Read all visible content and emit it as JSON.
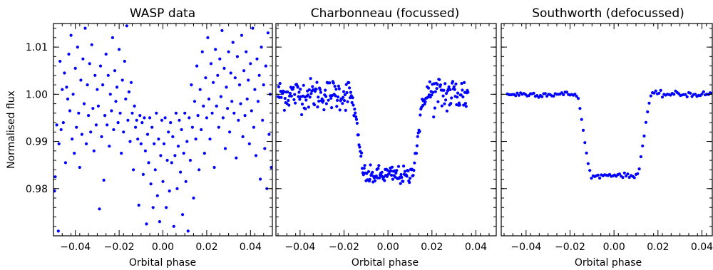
{
  "chart_data": [
    {
      "type": "scatter",
      "title": "WASP data",
      "xlabel": "Orbital phase",
      "ylabel": "Normalised flux",
      "xlim": [
        -0.05,
        0.05
      ],
      "ylim": [
        0.97,
        1.015
      ],
      "x_ticks": [
        -0.04,
        -0.02,
        0.0,
        0.02,
        0.04
      ],
      "x_tick_labels": [
        "−0.04",
        "−0.02",
        "0.00",
        "0.02",
        "0.04"
      ],
      "y_ticks": [
        0.98,
        0.99,
        1.0,
        1.01
      ],
      "y_tick_labels": [
        "0.98",
        "0.99",
        "1.00",
        "1.01"
      ],
      "grid": false,
      "marker_color": "#0000ff",
      "series": [
        {
          "values": [
            [
              -0.0495,
              0.9795
            ],
            [
              -0.0492,
              0.9825
            ],
            [
              -0.0485,
              0.9935
            ],
            [
              -0.0478,
              0.971
            ],
            [
              -0.0475,
              0.9895
            ],
            [
              -0.047,
              1.007
            ],
            [
              -0.0465,
              0.9925
            ],
            [
              -0.046,
              1.001
            ],
            [
              -0.0455,
              0.994
            ],
            [
              -0.045,
              1.0045
            ],
            [
              -0.0445,
              0.9855
            ],
            [
              -0.044,
              1.0015
            ],
            [
              -0.0435,
              0.999
            ],
            [
              -0.043,
              1.0085
            ],
            [
              -0.0425,
              0.9965
            ],
            [
              -0.042,
              1.0125
            ],
            [
              -0.0415,
              0.9905
            ],
            [
              -0.041,
              1.0
            ],
            [
              -0.0405,
              0.9875
            ],
            [
              -0.04,
              1.0055
            ],
            [
              -0.0395,
              0.993
            ],
            [
              -0.039,
              1.01
            ],
            [
              -0.0385,
              0.996
            ],
            [
              -0.038,
              0.9845
            ],
            [
              -0.0375,
              1.003
            ],
            [
              -0.037,
              0.9915
            ],
            [
              -0.0365,
              1.0075
            ],
            [
              -0.036,
              0.998
            ],
            [
              -0.0355,
              1.014
            ],
            [
              -0.035,
              0.9895
            ],
            [
              -0.0345,
              1.002
            ],
            [
              -0.034,
              0.9955
            ],
            [
              -0.0335,
              1.0065
            ],
            [
              -0.033,
              0.992
            ],
            [
              -0.0325,
              1.0105
            ],
            [
              -0.032,
              0.997
            ],
            [
              -0.0315,
              0.988
            ],
            [
              -0.031,
              1.004
            ],
            [
              -0.0305,
              0.9935
            ],
            [
              -0.03,
              1.001
            ],
            [
              -0.0295,
              0.9975
            ],
            [
              -0.029,
              0.9757
            ],
            [
              -0.0285,
              1.006
            ],
            [
              -0.028,
              0.991
            ],
            [
              -0.0275,
              1.002
            ],
            [
              -0.027,
              0.9818
            ],
            [
              -0.0265,
              0.9955
            ],
            [
              -0.026,
              1.0085
            ],
            [
              -0.0255,
              0.9935
            ],
            [
              -0.025,
              1.004
            ],
            [
              -0.0245,
              0.989
            ],
            [
              -0.024,
              1.0
            ],
            [
              -0.0235,
              0.9965
            ],
            [
              -0.023,
              1.012
            ],
            [
              -0.0225,
              0.9925
            ],
            [
              -0.022,
              1.005
            ],
            [
              -0.0215,
              0.9985
            ],
            [
              -0.021,
              1.0015
            ],
            [
              -0.0205,
              0.994
            ],
            [
              -0.02,
              1.0095
            ],
            [
              -0.0195,
              0.996
            ],
            [
              -0.019,
              0.9875
            ],
            [
              -0.0185,
              1.003
            ],
            [
              -0.018,
              0.992
            ],
            [
              -0.0175,
              1.007
            ],
            [
              -0.017,
              0.999
            ],
            [
              -0.0165,
              1.0145
            ],
            [
              -0.016,
              0.9945
            ],
            [
              -0.0155,
              1.0005
            ],
            [
              -0.015,
              0.99
            ],
            [
              -0.0145,
              1.0025
            ],
            [
              -0.014,
              0.996
            ],
            [
              -0.0135,
              0.984
            ],
            [
              -0.013,
              0.9975
            ],
            [
              -0.0125,
              0.993
            ],
            [
              -0.012,
              0.9945
            ],
            [
              -0.0115,
              0.9905
            ],
            [
              -0.011,
              0.9765
            ],
            [
              -0.0105,
              0.9955
            ],
            [
              -0.01,
              0.9895
            ],
            [
              -0.0095,
              0.994
            ],
            [
              -0.009,
              0.983
            ],
            [
              -0.0085,
              0.995
            ],
            [
              -0.008,
              0.988
            ],
            [
              -0.0075,
              0.9725
            ],
            [
              -0.007,
              0.9915
            ],
            [
              -0.0065,
              0.9855
            ],
            [
              -0.006,
              0.995
            ],
            [
              -0.0055,
              0.981
            ],
            [
              -0.005,
              0.993
            ],
            [
              -0.0045,
              0.976
            ],
            [
              -0.004,
              0.9895
            ],
            [
              -0.0035,
              0.984
            ],
            [
              -0.003,
              0.996
            ],
            [
              -0.0025,
              0.9785
            ],
            [
              -0.002,
              0.9905
            ],
            [
              -0.0015,
              0.973
            ],
            [
              -0.001,
              0.987
            ],
            [
              -0.0005,
              0.9945
            ],
            [
              0.0,
              0.9815
            ],
            [
              0.0005,
              0.9895
            ],
            [
              0.001,
              0.995
            ],
            [
              0.0015,
              0.976
            ],
            [
              0.002,
              0.986
            ],
            [
              0.0025,
              0.992
            ],
            [
              0.003,
              0.9795
            ],
            [
              0.0035,
              0.994
            ],
            [
              0.004,
              0.9855
            ],
            [
              0.0045,
              0.991
            ],
            [
              0.005,
              0.972
            ],
            [
              0.0055,
              0.987
            ],
            [
              0.006,
              0.996
            ],
            [
              0.0065,
              0.98
            ],
            [
              0.007,
              0.989
            ],
            [
              0.0075,
              0.9945
            ],
            [
              0.008,
              0.9835
            ],
            [
              0.0085,
              0.9925
            ],
            [
              0.009,
              0.9745
            ],
            [
              0.0095,
              0.9875
            ],
            [
              0.01,
              0.996
            ],
            [
              0.0105,
              0.9815
            ],
            [
              0.011,
              0.99
            ],
            [
              0.0115,
              0.971
            ],
            [
              0.012,
              0.995
            ],
            [
              0.0125,
              0.986
            ],
            [
              0.013,
              1.002
            ],
            [
              0.0135,
              0.993
            ],
            [
              0.014,
              0.978
            ],
            [
              0.0145,
              0.9985
            ],
            [
              0.015,
              0.9905
            ],
            [
              0.0155,
              1.006
            ],
            [
              0.016,
              0.9955
            ],
            [
              0.0165,
              0.984
            ],
            [
              0.017,
              1.001
            ],
            [
              0.0175,
              0.9925
            ],
            [
              0.018,
              1.009
            ],
            [
              0.0185,
              0.9975
            ],
            [
              0.019,
              0.9875
            ],
            [
              0.0195,
              1.0035
            ],
            [
              0.02,
              0.995
            ],
            [
              0.0205,
              1.012
            ],
            [
              0.021,
              0.999
            ],
            [
              0.0215,
              0.9905
            ],
            [
              0.022,
              1.0065
            ],
            [
              0.0225,
              0.996
            ],
            [
              0.023,
              1.0025
            ],
            [
              0.0235,
              0.9845
            ],
            [
              0.024,
              1.0095
            ],
            [
              0.0245,
              0.9975
            ],
            [
              0.025,
              1.004
            ],
            [
              0.0255,
              0.993
            ],
            [
              0.026,
              1.0075
            ],
            [
              0.0265,
              0.9995
            ],
            [
              0.027,
              1.0135
            ],
            [
              0.0275,
              0.995
            ],
            [
              0.028,
              1.0055
            ],
            [
              0.0285,
              0.9885
            ],
            [
              0.029,
              1.0015
            ],
            [
              0.0295,
              0.997
            ],
            [
              0.03,
              1.009
            ],
            [
              0.0305,
              0.992
            ],
            [
              0.031,
              1.0045
            ],
            [
              0.0315,
              0.9985
            ],
            [
              0.032,
              1.011
            ],
            [
              0.0325,
              0.996
            ],
            [
              0.033,
              1.0035
            ],
            [
              0.0335,
              0.9865
            ],
            [
              0.034,
              1.008
            ],
            [
              0.0345,
              0.9945
            ],
            [
              0.035,
              1.002
            ],
            [
              0.0355,
              0.998
            ],
            [
              0.036,
              1.0125
            ],
            [
              0.0365,
              0.991
            ],
            [
              0.037,
              1.005
            ],
            [
              0.0375,
              0.9955
            ],
            [
              0.038,
              1.009
            ],
            [
              0.0385,
              0.999
            ],
            [
              0.039,
              1.003
            ],
            [
              0.0395,
              0.9895
            ],
            [
              0.04,
              1.0065
            ],
            [
              0.0405,
              0.9965
            ],
            [
              0.041,
              1.014
            ],
            [
              0.0415,
              0.993
            ],
            [
              0.042,
              1.001
            ],
            [
              0.0425,
              0.987
            ],
            [
              0.043,
              1.0075
            ],
            [
              0.0435,
              0.9985
            ],
            [
              0.044,
              1.004
            ],
            [
              0.0445,
              0.982
            ],
            [
              0.045,
              1.01
            ],
            [
              0.0455,
              0.9945
            ],
            [
              0.046,
              1.002
            ],
            [
              0.0465,
              0.9885
            ],
            [
              0.047,
              1.006
            ],
            [
              0.0475,
              0.98
            ],
            [
              0.048,
              1.013
            ],
            [
              0.0485,
              0.9915
            ],
            [
              0.049,
              1.0
            ],
            [
              0.0495,
              0.9845
            ]
          ]
        }
      ]
    },
    {
      "type": "scatter",
      "title": "Charbonneau (focussed)",
      "xlabel": "Orbital phase",
      "ylabel": "",
      "xlim": [
        -0.05,
        0.05
      ],
      "ylim": [
        0.97,
        1.015
      ],
      "x_ticks": [
        -0.04,
        -0.02,
        0.0,
        0.02,
        0.04
      ],
      "x_tick_labels": [
        "−0.04",
        "−0.02",
        "0.00",
        "0.02",
        "0.04"
      ],
      "y_ticks": [
        0.98,
        0.99,
        1.0,
        1.01
      ],
      "y_tick_labels": [],
      "grid": false,
      "marker_color": "#0000ff",
      "series": [
        {
          "model": {
            "x_start": -0.05,
            "x_end": 0.0365,
            "step": 0.00029,
            "t1": -0.0175,
            "t2": -0.01,
            "t3": 0.01,
            "t4": 0.0175,
            "depth": 0.0173,
            "curvature": 0.0015
          },
          "scatter_amplitude": {
            "out_of_transit": 0.0022,
            "in_transit": 0.0013,
            "egress_side": 0.0028
          }
        }
      ]
    },
    {
      "type": "scatter",
      "title": "Southworth (defocussed)",
      "xlabel": "Orbital phase",
      "ylabel": "",
      "xlim": [
        -0.05,
        0.05
      ],
      "ylim": [
        0.97,
        1.015
      ],
      "x_ticks": [
        -0.04,
        -0.02,
        0.0,
        0.02,
        0.04
      ],
      "x_tick_labels": [
        "−0.04",
        "−0.02",
        "0.00",
        "0.02",
        "0.04"
      ],
      "y_ticks": [
        0.98,
        0.99,
        1.0,
        1.01
      ],
      "y_tick_labels": [],
      "grid": false,
      "marker_color": "#0000ff",
      "series": [
        {
          "model": {
            "x_start": -0.0485,
            "x_end": 0.05,
            "step": 0.00075,
            "t1": -0.0175,
            "t2": -0.01,
            "t3": 0.01,
            "t4": 0.0175,
            "depth": 0.0173,
            "curvature": 0.0015
          },
          "scatter_amplitude": {
            "out_of_transit": 0.0004,
            "in_transit": 0.0003,
            "egress_side": 0.0004
          }
        }
      ]
    }
  ]
}
